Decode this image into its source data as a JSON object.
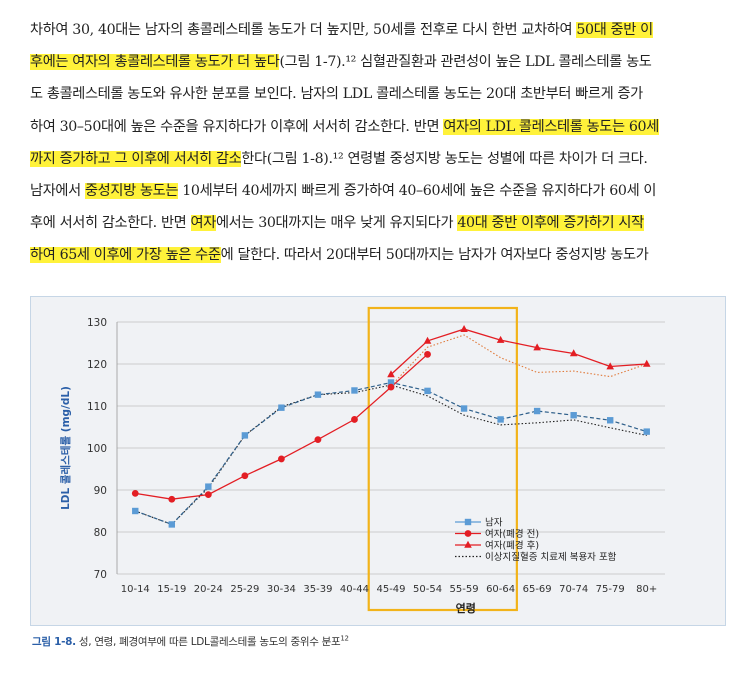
{
  "paragraph_lines": [
    [
      {
        "t": "차하여 30, 40대는 남자의 총콜레스테롤 농도가 더 높지만, 50세를 전후로 다시 한번 교차하여 "
      },
      {
        "t": "50대 중반 이",
        "hl": true
      }
    ],
    [
      {
        "t": "후에는 여자의 총콜레스테롤 농도가 더 높다",
        "hl": true
      },
      {
        "t": "(그림 1-7).¹² 심혈관질환과 관련성이 높은 LDL 콜레스테롤 농도"
      }
    ],
    [
      {
        "t": "도 총콜레스테롤 농도와 유사한 분포를 보인다. 남자의 LDL 콜레스테롤 농도는 20대 초반부터 빠르게 증가"
      }
    ],
    [
      {
        "t": "하여 30–50대에 높은 수준을 유지하다가 이후에 서서히 감소한다. 반면 "
      },
      {
        "t": "여자의 LDL 콜레스테롤 농도는 60세",
        "hl": true
      }
    ],
    [
      {
        "t": "까지 증가하고 그 이후에 서서히 감소",
        "hl": true
      },
      {
        "t": "한다(그림 1-8).¹² 연령별 중성지방 농도는 성별에 따른 차이가 더 크다."
      }
    ],
    [
      {
        "t": "남자에서 "
      },
      {
        "t": "중성지방 농도는",
        "hl": true
      },
      {
        "t": " 10세부터 40세까지 빠르게 증가하여 40–60세에 높은 수준을 유지하다가 60세 이"
      }
    ],
    [
      {
        "t": "후에 서서히 감소한다. 반면 "
      },
      {
        "t": "여자",
        "hl": true
      },
      {
        "t": "에서는 30대까지는 매우 낮게 유지되다가 "
      },
      {
        "t": "40대 중반 이후에 증가하기 시작",
        "hl": true
      }
    ],
    [
      {
        "t": "하여 65세 이후에 가장 높은 수준",
        "hl": true
      },
      {
        "t": "에 달한다. 따라서 20대부터 50대까지는 남자가 여자보다 중성지방 농도가"
      }
    ]
  ],
  "caption": {
    "number": "그림 1-8.",
    "text": " 성, 연령, 폐경여부에 따른 LDL콜레스테롤 농도의 중위수 분포",
    "ref": "12"
  },
  "colors": {
    "male": "#5b9bd5",
    "male_line": "#2e5f8a",
    "female": "#e31e24",
    "supplement_dotted_male": "#222222",
    "supplement_dotted_female": "#e07a3a",
    "highlight_box": "#f2b31a",
    "axis_title": "#2b5fa8",
    "grid": "#bfbfbf"
  },
  "chart_data": {
    "type": "line",
    "ylabel": "LDL 콜레스테롤 (mg/dL)",
    "xlabel": "연령",
    "ylim": [
      70,
      130
    ],
    "yticks": [
      70,
      80,
      90,
      100,
      110,
      120,
      130
    ],
    "grid": true,
    "legend_position": "bottom-right",
    "categories": [
      "10-14",
      "15-19",
      "20-24",
      "25-29",
      "30-34",
      "35-39",
      "40-44",
      "45-49",
      "50-54",
      "55-59",
      "60-64",
      "65-69",
      "70-74",
      "75-79",
      "80+"
    ],
    "highlight_categories": [
      "45-49",
      "50-54",
      "55-59",
      "60-64"
    ],
    "series": [
      {
        "name": "남자",
        "marker": "square",
        "values": [
          85,
          81.8,
          90.8,
          103,
          109.6,
          112.7,
          113.7,
          115.6,
          113.6,
          109.4,
          106.8,
          108.8,
          107.8,
          106.6,
          103.9
        ]
      },
      {
        "name": "여자(폐경 전)",
        "marker": "circle",
        "values": [
          89.2,
          87.8,
          88.9,
          93.4,
          97.4,
          102,
          106.8,
          114.5,
          122.3,
          null,
          null,
          null,
          null,
          null,
          null
        ]
      },
      {
        "name": "여자(폐경 후)",
        "marker": "triangle",
        "values": [
          null,
          null,
          null,
          null,
          null,
          null,
          null,
          117.5,
          125.5,
          128.3,
          125.7,
          123.9,
          122.5,
          119.4,
          120
        ]
      },
      {
        "name": "이상지질혈증 치료제 복용자 포함",
        "marker": "none",
        "values": [
          85,
          81.8,
          90.5,
          103,
          109.8,
          112.7,
          113.2,
          115,
          112.4,
          107.8,
          105.5,
          106,
          106.7,
          104.8,
          103
        ]
      },
      {
        "name": "",
        "marker": "none",
        "values": [
          null,
          null,
          null,
          null,
          null,
          null,
          null,
          114.8,
          124,
          126.9,
          121.5,
          118,
          118.3,
          117,
          120
        ]
      }
    ]
  }
}
